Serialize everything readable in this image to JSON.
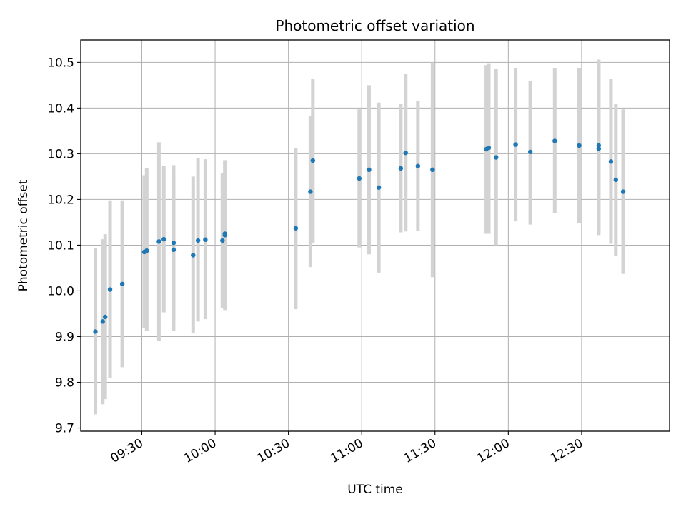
{
  "chart_data": {
    "type": "scatter",
    "title": "Photometric offset variation",
    "xlabel": "UTC time",
    "ylabel": "Photometric offset",
    "x_tick_labels": [
      "09:30",
      "10:00",
      "10:30",
      "11:00",
      "11:30",
      "12:00",
      "12:30"
    ],
    "y_tick_labels": [
      "9.7",
      "9.8",
      "9.9",
      "10.0",
      "10.1",
      "10.2",
      "10.3",
      "10.4",
      "10.5"
    ],
    "xlim": [
      "09:05",
      "13:06"
    ],
    "ylim": [
      9.693,
      10.549
    ],
    "grid": true,
    "colors": {
      "points": "#1f77b4",
      "errorbars": "#d3d3d3",
      "grid": "#b0b0b0"
    },
    "points": [
      {
        "t": "09:11",
        "y": 9.911,
        "lo": 9.73,
        "hi": 10.093
      },
      {
        "t": "09:14",
        "y": 9.933,
        "lo": 9.752,
        "hi": 10.113
      },
      {
        "t": "09:15",
        "y": 9.943,
        "lo": 9.763,
        "hi": 10.124
      },
      {
        "t": "09:17",
        "y": 10.003,
        "lo": 9.81,
        "hi": 10.198
      },
      {
        "t": "09:22",
        "y": 10.015,
        "lo": 9.833,
        "hi": 10.198
      },
      {
        "t": "09:31",
        "y": 10.085,
        "lo": 9.918,
        "hi": 10.253
      },
      {
        "t": "09:32",
        "y": 10.088,
        "lo": 9.913,
        "hi": 10.268
      },
      {
        "t": "09:37",
        "y": 10.108,
        "lo": 9.89,
        "hi": 10.325
      },
      {
        "t": "09:39",
        "y": 10.113,
        "lo": 9.953,
        "hi": 10.273
      },
      {
        "t": "09:43",
        "y": 10.09,
        "lo": 9.913,
        "hi": 10.265
      },
      {
        "t": "09:43",
        "y": 10.105,
        "lo": 9.938,
        "hi": 10.275
      },
      {
        "t": "09:51",
        "y": 10.078,
        "lo": 9.908,
        "hi": 10.25
      },
      {
        "t": "09:53",
        "y": 10.11,
        "lo": 9.933,
        "hi": 10.29
      },
      {
        "t": "09:56",
        "y": 10.112,
        "lo": 9.938,
        "hi": 10.288
      },
      {
        "t": "10:03",
        "y": 10.11,
        "lo": 9.963,
        "hi": 10.258
      },
      {
        "t": "10:04",
        "y": 10.122,
        "lo": 9.958,
        "hi": 10.285
      },
      {
        "t": "10:04",
        "y": 10.125,
        "lo": 9.966,
        "hi": 10.286
      },
      {
        "t": "10:33",
        "y": 10.137,
        "lo": 9.96,
        "hi": 10.313
      },
      {
        "t": "10:39",
        "y": 10.217,
        "lo": 10.052,
        "hi": 10.382
      },
      {
        "t": "10:40",
        "y": 10.285,
        "lo": 10.105,
        "hi": 10.463
      },
      {
        "t": "10:59",
        "y": 10.246,
        "lo": 10.095,
        "hi": 10.397
      },
      {
        "t": "11:03",
        "y": 10.265,
        "lo": 10.08,
        "hi": 10.45
      },
      {
        "t": "11:07",
        "y": 10.226,
        "lo": 10.04,
        "hi": 10.412
      },
      {
        "t": "11:16",
        "y": 10.268,
        "lo": 10.128,
        "hi": 10.41
      },
      {
        "t": "11:18",
        "y": 10.302,
        "lo": 10.13,
        "hi": 10.475
      },
      {
        "t": "11:23",
        "y": 10.273,
        "lo": 10.132,
        "hi": 10.415
      },
      {
        "t": "11:29",
        "y": 10.265,
        "lo": 10.03,
        "hi": 10.5
      },
      {
        "t": "11:51",
        "y": 10.31,
        "lo": 10.125,
        "hi": 10.494
      },
      {
        "t": "11:52",
        "y": 10.313,
        "lo": 10.125,
        "hi": 10.498
      },
      {
        "t": "11:55",
        "y": 10.292,
        "lo": 10.1,
        "hi": 10.485
      },
      {
        "t": "12:03",
        "y": 10.32,
        "lo": 10.152,
        "hi": 10.488
      },
      {
        "t": "12:09",
        "y": 10.304,
        "lo": 10.145,
        "hi": 10.46
      },
      {
        "t": "12:19",
        "y": 10.328,
        "lo": 10.17,
        "hi": 10.488
      },
      {
        "t": "12:29",
        "y": 10.318,
        "lo": 10.148,
        "hi": 10.488
      },
      {
        "t": "12:37",
        "y": 10.318,
        "lo": 10.128,
        "hi": 10.506
      },
      {
        "t": "12:37",
        "y": 10.311,
        "lo": 10.122,
        "hi": 10.5
      },
      {
        "t": "12:42",
        "y": 10.283,
        "lo": 10.103,
        "hi": 10.463
      },
      {
        "t": "12:44",
        "y": 10.243,
        "lo": 10.077,
        "hi": 10.41
      },
      {
        "t": "12:47",
        "y": 10.217,
        "lo": 10.037,
        "hi": 10.397
      }
    ]
  }
}
